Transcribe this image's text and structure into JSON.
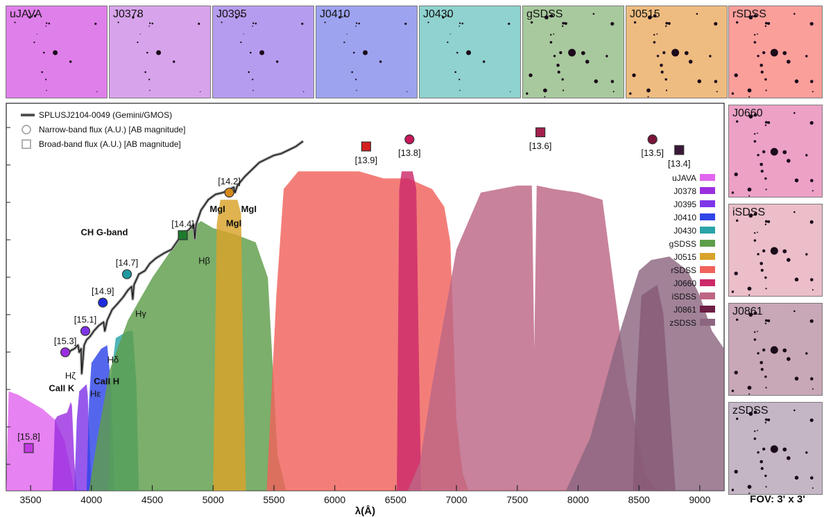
{
  "chart_data": {
    "type": "line",
    "xlabel": "λ(Å)",
    "xlim": [
      3300,
      9200
    ],
    "x_ticks": [
      3500,
      4000,
      4500,
      5000,
      5500,
      6000,
      6500,
      7000,
      7500,
      8000,
      8500,
      9000
    ],
    "ylabel": "",
    "spectrum": {
      "name": "SPLUSJ2104-0049 (Gemini/GMOS)",
      "x": [
        3800,
        3830,
        3860,
        3890,
        3900,
        3915,
        3920,
        3940,
        3960,
        3990,
        4020,
        4060,
        4080,
        4100,
        4110,
        4130,
        4170,
        4210,
        4260,
        4300,
        4330,
        4340,
        4350,
        4390,
        4440,
        4480,
        4530,
        4600,
        4660,
        4700,
        4740,
        4800,
        4840,
        4850,
        4860,
        4900,
        4960,
        5020,
        5080,
        5140,
        5170,
        5180,
        5200,
        5260,
        5320,
        5380,
        5440,
        5500,
        5560,
        5620,
        5680,
        5740
      ],
      "y": [
        0.38,
        0.395,
        0.4,
        0.41,
        0.39,
        0.4,
        0.33,
        0.41,
        0.425,
        0.435,
        0.45,
        0.465,
        0.47,
        0.475,
        0.45,
        0.48,
        0.51,
        0.525,
        0.545,
        0.565,
        0.575,
        0.54,
        0.58,
        0.61,
        0.62,
        0.64,
        0.655,
        0.67,
        0.68,
        0.7,
        0.72,
        0.735,
        0.75,
        0.71,
        0.75,
        0.79,
        0.82,
        0.835,
        0.84,
        0.85,
        0.855,
        0.84,
        0.86,
        0.885,
        0.905,
        0.925,
        0.935,
        0.945,
        0.95,
        0.96,
        0.97,
        0.985
      ]
    },
    "photometry": [
      {
        "filter": "uJAVA",
        "x": 3485,
        "mag": "[15.8]",
        "y": 0.12,
        "marker": "square",
        "color": "#c13ae0"
      },
      {
        "filter": "J0378",
        "x": 3785,
        "mag": "[15.3]",
        "y": 0.39,
        "marker": "circle",
        "color": "#9b2fe0"
      },
      {
        "filter": "J0395",
        "x": 3950,
        "mag": "[15.1]",
        "y": 0.45,
        "marker": "circle",
        "color": "#7f35e8"
      },
      {
        "filter": "J0410",
        "x": 4094,
        "mag": "[14.9]",
        "y": 0.53,
        "marker": "circle",
        "color": "#1f2be0"
      },
      {
        "filter": "J0430",
        "x": 4292,
        "mag": "[14.7]",
        "y": 0.61,
        "marker": "circle",
        "color": "#1f9aa0"
      },
      {
        "filter": "gSDSS",
        "x": 4751,
        "mag": "[14.4]",
        "y": 0.72,
        "marker": "square",
        "color": "#1d7a2d"
      },
      {
        "filter": "J0515",
        "x": 5133,
        "mag": "[14.2]",
        "y": 0.84,
        "marker": "circle",
        "color": "#d48a1a"
      },
      {
        "filter": "rSDSS",
        "x": 6258,
        "mag": "[13.9]",
        "y": 0.97,
        "marker": "square",
        "color": "#d61f1f"
      },
      {
        "filter": "J0660",
        "x": 6614,
        "mag": "[13.8]",
        "y": 0.99,
        "marker": "circle",
        "color": "#c5175a"
      },
      {
        "filter": "iSDSS",
        "x": 7690,
        "mag": "[13.6]",
        "y": 1.01,
        "marker": "square",
        "color": "#a3204d"
      },
      {
        "filter": "J0861",
        "x": 8611,
        "mag": "[13.5]",
        "y": 0.99,
        "marker": "circle",
        "color": "#7a1438"
      },
      {
        "filter": "zSDSS",
        "x": 8831,
        "mag": "[13.4]",
        "y": 0.96,
        "marker": "square",
        "color": "#3a1838"
      }
    ],
    "lines": [
      {
        "label": "CaII K",
        "x": 3934
      },
      {
        "label": "CaII H",
        "x": 3969
      },
      {
        "label": "Hζ",
        "x": 3889
      },
      {
        "label": "Hε",
        "x": 3970
      },
      {
        "label": "Hδ",
        "x": 4102
      },
      {
        "label": "Hγ",
        "x": 4341
      },
      {
        "label": "Hβ",
        "x": 4861
      },
      {
        "label": "CH G-band",
        "x": 4305
      },
      {
        "label": "MgI",
        "x": 5167
      },
      {
        "label": "MgI",
        "x": 5173
      },
      {
        "label": "MgI",
        "x": 5184
      }
    ],
    "legend_top": [
      {
        "label": "SPLUSJ2104-0049 (Gemini/GMOS)",
        "icon": "line"
      },
      {
        "label": "Narrow-band flux (A.U.) [AB magnitude]",
        "icon": "circle"
      },
      {
        "label": "Broad-band flux (A.U.) [AB magnitude]",
        "icon": "square"
      }
    ],
    "filters": [
      {
        "name": "uJAVA",
        "color": "#e066ee"
      },
      {
        "name": "J0378",
        "color": "#9b2fe0"
      },
      {
        "name": "J0395",
        "color": "#7f35e8"
      },
      {
        "name": "J0410",
        "color": "#2e45e8"
      },
      {
        "name": "J0430",
        "color": "#2aa4a8"
      },
      {
        "name": "gSDSS",
        "color": "#5e9e4a"
      },
      {
        "name": "J0515",
        "color": "#d9a22a"
      },
      {
        "name": "rSDSS",
        "color": "#f0625c"
      },
      {
        "name": "J0660",
        "color": "#cc2a6a"
      },
      {
        "name": "iSDSS",
        "color": "#bd6685"
      },
      {
        "name": "J0861",
        "color": "#6e1f45"
      },
      {
        "name": "zSDSS",
        "color": "#8c6680"
      }
    ],
    "filter_curves": [
      {
        "name": "uJAVA",
        "x": [
          3300,
          3320,
          3400,
          3500,
          3600,
          3700,
          3780,
          3840,
          3860
        ],
        "y": [
          0,
          0.28,
          0.27,
          0.25,
          0.23,
          0.2,
          0.14,
          0.04,
          0
        ]
      },
      {
        "name": "J0378",
        "x": [
          3680,
          3700,
          3720,
          3800,
          3830,
          3840,
          3860,
          3880
        ],
        "y": [
          0,
          0.2,
          0.21,
          0.22,
          0.25,
          0.24,
          0.08,
          0
        ]
      },
      {
        "name": "J0395",
        "x": [
          3860,
          3880,
          3900,
          3960,
          3970,
          3990,
          4000
        ],
        "y": [
          0,
          0.2,
          0.28,
          0.3,
          0.27,
          0.1,
          0
        ]
      },
      {
        "name": "J0410",
        "x": [
          3960,
          3980,
          4000,
          4080,
          4130,
          4160,
          4190
        ],
        "y": [
          0,
          0.25,
          0.36,
          0.4,
          0.41,
          0.3,
          0
        ]
      },
      {
        "name": "J0430",
        "x": [
          4140,
          4160,
          4200,
          4300,
          4340,
          4370,
          4390
        ],
        "y": [
          0,
          0.32,
          0.43,
          0.45,
          0.45,
          0.3,
          0
        ]
      },
      {
        "name": "gSDSS",
        "x": [
          3980,
          4050,
          4150,
          4300,
          4500,
          4700,
          4900,
          5000,
          5200,
          5350,
          5450,
          5530,
          5600
        ],
        "y": [
          0,
          0.15,
          0.34,
          0.48,
          0.6,
          0.7,
          0.76,
          0.74,
          0.72,
          0.7,
          0.6,
          0.1,
          0
        ]
      },
      {
        "name": "J0515",
        "x": [
          5000,
          5030,
          5060,
          5200,
          5230,
          5250,
          5270
        ],
        "y": [
          0,
          0.75,
          0.82,
          0.82,
          0.78,
          0.3,
          0
        ]
      },
      {
        "name": "rSDSS",
        "x": [
          5440,
          5520,
          5580,
          5700,
          6000,
          6200,
          6400,
          6600,
          6800,
          6900,
          6950,
          7000,
          7050,
          7100
        ],
        "y": [
          0,
          0.55,
          0.85,
          0.9,
          0.9,
          0.9,
          0.88,
          0.88,
          0.85,
          0.8,
          0.7,
          0.2,
          0.05,
          0
        ]
      },
      {
        "name": "J0660",
        "x": [
          6510,
          6530,
          6550,
          6640,
          6670,
          6690,
          6710
        ],
        "y": [
          0,
          0.85,
          0.9,
          0.9,
          0.85,
          0.4,
          0
        ]
      },
      {
        "name": "iSDSS",
        "x": [
          6600,
          6700,
          6800,
          7000,
          7200,
          7500,
          7620,
          7640,
          7660,
          7800,
          8000,
          8200,
          8400,
          8550,
          8650
        ],
        "y": [
          0,
          0.08,
          0.3,
          0.68,
          0.84,
          0.86,
          0.86,
          0.4,
          0.86,
          0.85,
          0.84,
          0.82,
          0.3,
          0.05,
          0
        ]
      },
      {
        "name": "J0861",
        "x": [
          8450,
          8480,
          8520,
          8650,
          8700,
          8760,
          8800
        ],
        "y": [
          0,
          0.3,
          0.55,
          0.58,
          0.5,
          0.2,
          0
        ]
      },
      {
        "name": "zSDSS",
        "x": [
          7900,
          8100,
          8300,
          8500,
          8600,
          8750,
          8900,
          9000,
          9100,
          9200
        ],
        "y": [
          0,
          0.15,
          0.4,
          0.62,
          0.65,
          0.66,
          0.62,
          0.55,
          0.45,
          0.4
        ]
      }
    ]
  },
  "tiles": [
    {
      "id": "uJAVA",
      "label": "uJAVA",
      "bg": "#df7fea"
    },
    {
      "id": "J0378",
      "label": "J0378",
      "bg": "#d7a4ec"
    },
    {
      "id": "J0395",
      "label": "J0395",
      "bg": "#b69cee"
    },
    {
      "id": "J0410",
      "label": "J0410",
      "bg": "#9da3ef"
    },
    {
      "id": "J0430",
      "label": "J0430",
      "bg": "#8fd2cf"
    },
    {
      "id": "gSDSS",
      "label": "gSDSS",
      "bg": "#a7c99d"
    },
    {
      "id": "J0515",
      "label": "J0515",
      "bg": "#eebc80"
    },
    {
      "id": "rSDSS",
      "label": "rSDSS",
      "bg": "#fb9f9b"
    },
    {
      "id": "J0660",
      "label": "J0660",
      "bg": "#eca1c5"
    },
    {
      "id": "iSDSS",
      "label": "iSDSS",
      "bg": "#ebbec9"
    },
    {
      "id": "J0861",
      "label": "J0861",
      "bg": "#c8a7b7"
    },
    {
      "id": "zSDSS",
      "label": "zSDSS",
      "bg": "#c5b6c6"
    }
  ],
  "fov_label": "FOV: 3' x 3'"
}
